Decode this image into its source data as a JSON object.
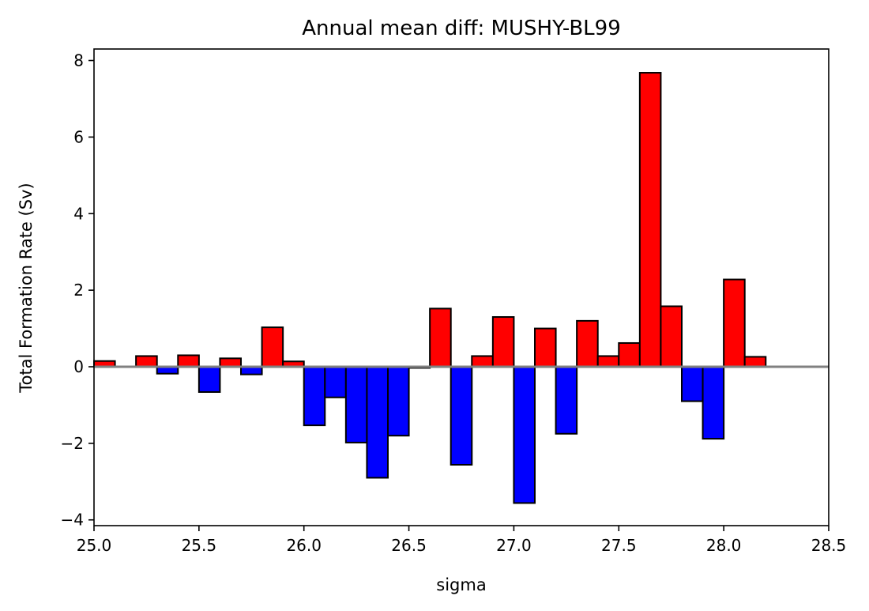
{
  "chart_data": {
    "type": "bar",
    "title": "Annual mean diff: MUSHY-BL99",
    "xlabel": "sigma",
    "ylabel": "Total Formation Rate (Sv)",
    "xlim": [
      25.0,
      28.5
    ],
    "ylim": [
      -4.15,
      8.3
    ],
    "xticks": [
      25.0,
      25.5,
      26.0,
      26.5,
      27.0,
      27.5,
      28.0,
      28.5
    ],
    "xtick_labels": [
      "25.0",
      "25.5",
      "26.0",
      "26.5",
      "27.0",
      "27.5",
      "28.0",
      "28.5"
    ],
    "yticks": [
      -4,
      -2,
      0,
      2,
      4,
      6,
      8
    ],
    "ytick_labels": [
      "−4",
      "−2",
      "0",
      "2",
      "4",
      "6",
      "8"
    ],
    "bar_width": 0.1,
    "x": [
      25.05,
      25.15,
      25.25,
      25.35,
      25.45,
      25.55,
      25.65,
      25.75,
      25.85,
      25.95,
      26.05,
      26.15,
      26.25,
      26.35,
      26.45,
      26.55,
      26.65,
      26.75,
      26.85,
      26.95,
      27.05,
      27.15,
      27.25,
      27.35,
      27.45,
      27.55,
      27.65,
      27.75,
      27.85,
      27.95,
      28.05,
      28.15
    ],
    "values": [
      0.15,
      0.0,
      0.28,
      -0.18,
      0.3,
      -0.66,
      0.22,
      -0.2,
      1.03,
      0.14,
      -1.53,
      -0.8,
      -1.98,
      -2.9,
      -1.8,
      -0.03,
      1.52,
      -2.56,
      0.28,
      1.3,
      -3.56,
      1.0,
      -1.75,
      1.2,
      0.28,
      0.62,
      7.68,
      1.58,
      -0.9,
      -1.88,
      2.28,
      0.26
    ],
    "positive_color": "#ff0000",
    "negative_color": "#0000ff",
    "edge_color": "#000000",
    "zero_line_color": "#808080",
    "grid": false,
    "legend": false
  }
}
